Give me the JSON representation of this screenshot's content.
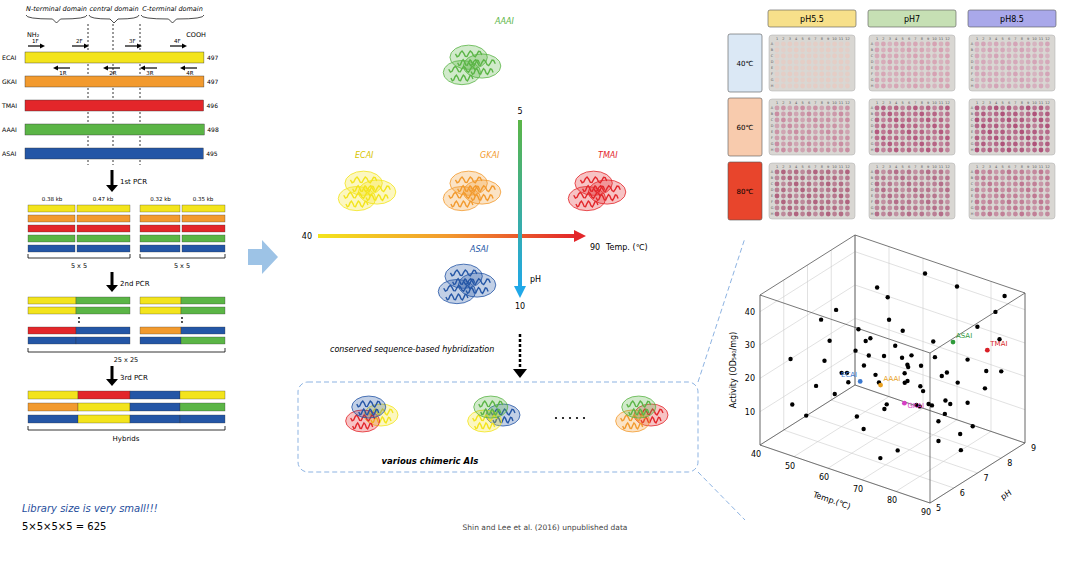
{
  "pcr_diagram": {
    "domains": [
      "N-terminal domain",
      "central domain",
      "C-terminal domain"
    ],
    "terminals": [
      "NH₂",
      "COOH"
    ],
    "forward_primers": [
      "1F",
      "2F",
      "3F",
      "4F"
    ],
    "reverse_primers": [
      "1R",
      "2R",
      "3R",
      "4R"
    ],
    "enzymes": [
      {
        "name": "ECAI",
        "length": 497,
        "color": "#f3e41c"
      },
      {
        "name": "GKAI",
        "length": 497,
        "color": "#f29a2e"
      },
      {
        "name": "TMAI",
        "length": 496,
        "color": "#e3262a"
      },
      {
        "name": "AAAI",
        "length": 498,
        "color": "#5bb546"
      },
      {
        "name": "ASAI",
        "length": 495,
        "color": "#2456a6"
      }
    ],
    "steps": [
      "1st PCR",
      "2nd PCR",
      "3rd PCR"
    ],
    "fragments": [
      "0.38 kb",
      "0.47 kb",
      "0.32 kb",
      "0.35 kb"
    ],
    "first_combinations": [
      "5 x 5",
      "5 x 5"
    ],
    "second_combinations": "25 x 25",
    "result": "Hybrids"
  },
  "library_note": {
    "title": "Library size is very small!!!",
    "formula": "5×5×5×5 = 625"
  },
  "enzyme_map": {
    "temp_axis": {
      "start": "40",
      "end": "90",
      "label": "Temp. (℃)"
    },
    "ph_axis": {
      "start": "5",
      "end": "10",
      "label": "pH"
    },
    "method": "conserved sequence-based hybridization",
    "result": "various chimeric AIs"
  },
  "plates": {
    "columns": [
      {
        "label": "pH5.5",
        "color": "#f7e08a"
      },
      {
        "label": "pH7",
        "color": "#c6e0b4"
      },
      {
        "label": "pH8.5",
        "color": "#a9a8ea"
      }
    ],
    "rows": [
      {
        "label": "40℃",
        "color": "#dbe8f5"
      },
      {
        "label": "60℃",
        "color": "#f8cbad"
      },
      {
        "label": "80℃",
        "color": "#e8452c"
      }
    ],
    "well_columns": [
      "1",
      "2",
      "3",
      "4",
      "5",
      "6",
      "7",
      "8",
      "9",
      "10",
      "11",
      "12"
    ],
    "well_rows": [
      "A",
      "B",
      "C",
      "D",
      "E",
      "F",
      "G",
      "H"
    ],
    "tints": [
      [
        "#e6cbc3",
        "#d6a0b2",
        "#d4a2b6"
      ],
      [
        "#c98aa0",
        "#b3567c",
        "#ad4e77"
      ],
      [
        "#ae607c",
        "#b36a86",
        "#be7590"
      ]
    ]
  },
  "chart_data": {
    "type": "scatter3d",
    "x_label": "Temp.(℃)",
    "y_label": "pH",
    "z_label": "Activity (OD₅₄₀/mg)",
    "xlim": [
      40,
      90
    ],
    "xticks": [
      40,
      50,
      60,
      70,
      80,
      90
    ],
    "ylim": [
      5,
      9
    ],
    "yticks": [
      5,
      6,
      7,
      8,
      9
    ],
    "zlim": [
      0,
      45
    ],
    "zticks": [
      10,
      20,
      30,
      40
    ],
    "grid": true,
    "color": "#000000",
    "points": [
      [
        42,
        6,
        22
      ],
      [
        45,
        7,
        18
      ],
      [
        48,
        8,
        24
      ],
      [
        50,
        6.5,
        28
      ],
      [
        52,
        7,
        14
      ],
      [
        53,
        5.5,
        20
      ],
      [
        55,
        7.5,
        26
      ],
      [
        55,
        6,
        16
      ],
      [
        57,
        8,
        30
      ],
      [
        58,
        6.8,
        22
      ],
      [
        60,
        7,
        19
      ],
      [
        60,
        5.8,
        25
      ],
      [
        61,
        8.2,
        17
      ],
      [
        62,
        6.3,
        33
      ],
      [
        63,
        7.4,
        27
      ],
      [
        64,
        6.9,
        12
      ],
      [
        65,
        7.8,
        23
      ],
      [
        65,
        5.5,
        15
      ],
      [
        66,
        6.5,
        29
      ],
      [
        67,
        8.5,
        20
      ],
      [
        68,
        7,
        35
      ],
      [
        68,
        6,
        24
      ],
      [
        69,
        7.6,
        16
      ],
      [
        70,
        6.8,
        21
      ],
      [
        70,
        8,
        28
      ],
      [
        71,
        5.8,
        18
      ],
      [
        72,
        7.2,
        25
      ],
      [
        72,
        6.4,
        31
      ],
      [
        73,
        8.6,
        14
      ],
      [
        74,
        7,
        19
      ],
      [
        75,
        6.2,
        26
      ],
      [
        75,
        8,
        11
      ],
      [
        76,
        7.5,
        22
      ],
      [
        77,
        5.5,
        9
      ],
      [
        78,
        6.8,
        17
      ],
      [
        78,
        8.3,
        24
      ],
      [
        79,
        7.2,
        13
      ],
      [
        80,
        6,
        21
      ],
      [
        80,
        8.8,
        19
      ],
      [
        81,
        7,
        27
      ],
      [
        82,
        6.5,
        15
      ],
      [
        83,
        7.8,
        8
      ],
      [
        84,
        5.8,
        24
      ],
      [
        85,
        7.3,
        18
      ],
      [
        86,
        8.5,
        32
      ],
      [
        87,
        6.7,
        12
      ],
      [
        88,
        7.6,
        22
      ],
      [
        89,
        5.5,
        16
      ],
      [
        90,
        8,
        26
      ],
      [
        90,
        6.3,
        10
      ],
      [
        46,
        5.5,
        12
      ],
      [
        50,
        8.5,
        35
      ],
      [
        54,
        6.2,
        40
      ],
      [
        58,
        7.8,
        38
      ],
      [
        62,
        8.8,
        42
      ],
      [
        66,
        5.3,
        36
      ],
      [
        70,
        9,
        40
      ],
      [
        74,
        5.2,
        7
      ],
      [
        78,
        5.8,
        33
      ],
      [
        82,
        8.9,
        37
      ],
      [
        86,
        5,
        28
      ],
      [
        44,
        7,
        30
      ],
      [
        48,
        5.8,
        8
      ],
      [
        56,
        8.8,
        10
      ],
      [
        60,
        6.5,
        5
      ],
      [
        64,
        5,
        30
      ],
      [
        68,
        8.8,
        6
      ],
      [
        72,
        5,
        38
      ],
      [
        76,
        9,
        30
      ],
      [
        84,
        9,
        42
      ]
    ],
    "labeled_points": [
      {
        "name": "ECAI",
        "color": "#3a78d0",
        "point": [
          52,
          7.5,
          12
        ]
      },
      {
        "name": "AAAI",
        "color": "#e8a020",
        "point": [
          58,
          7.5,
          13
        ]
      },
      {
        "name": "GKAI",
        "color": "#d63fc4",
        "point": [
          65,
          7.5,
          10
        ]
      },
      {
        "name": "ASAI",
        "color": "#2f9a3a",
        "point": [
          80,
          7.4,
          34
        ]
      },
      {
        "name": "TMAI",
        "color": "#d91f26",
        "point": [
          88,
          7.7,
          33
        ]
      }
    ]
  },
  "credit": "Shin and Lee et al. (2016) unpublished data"
}
